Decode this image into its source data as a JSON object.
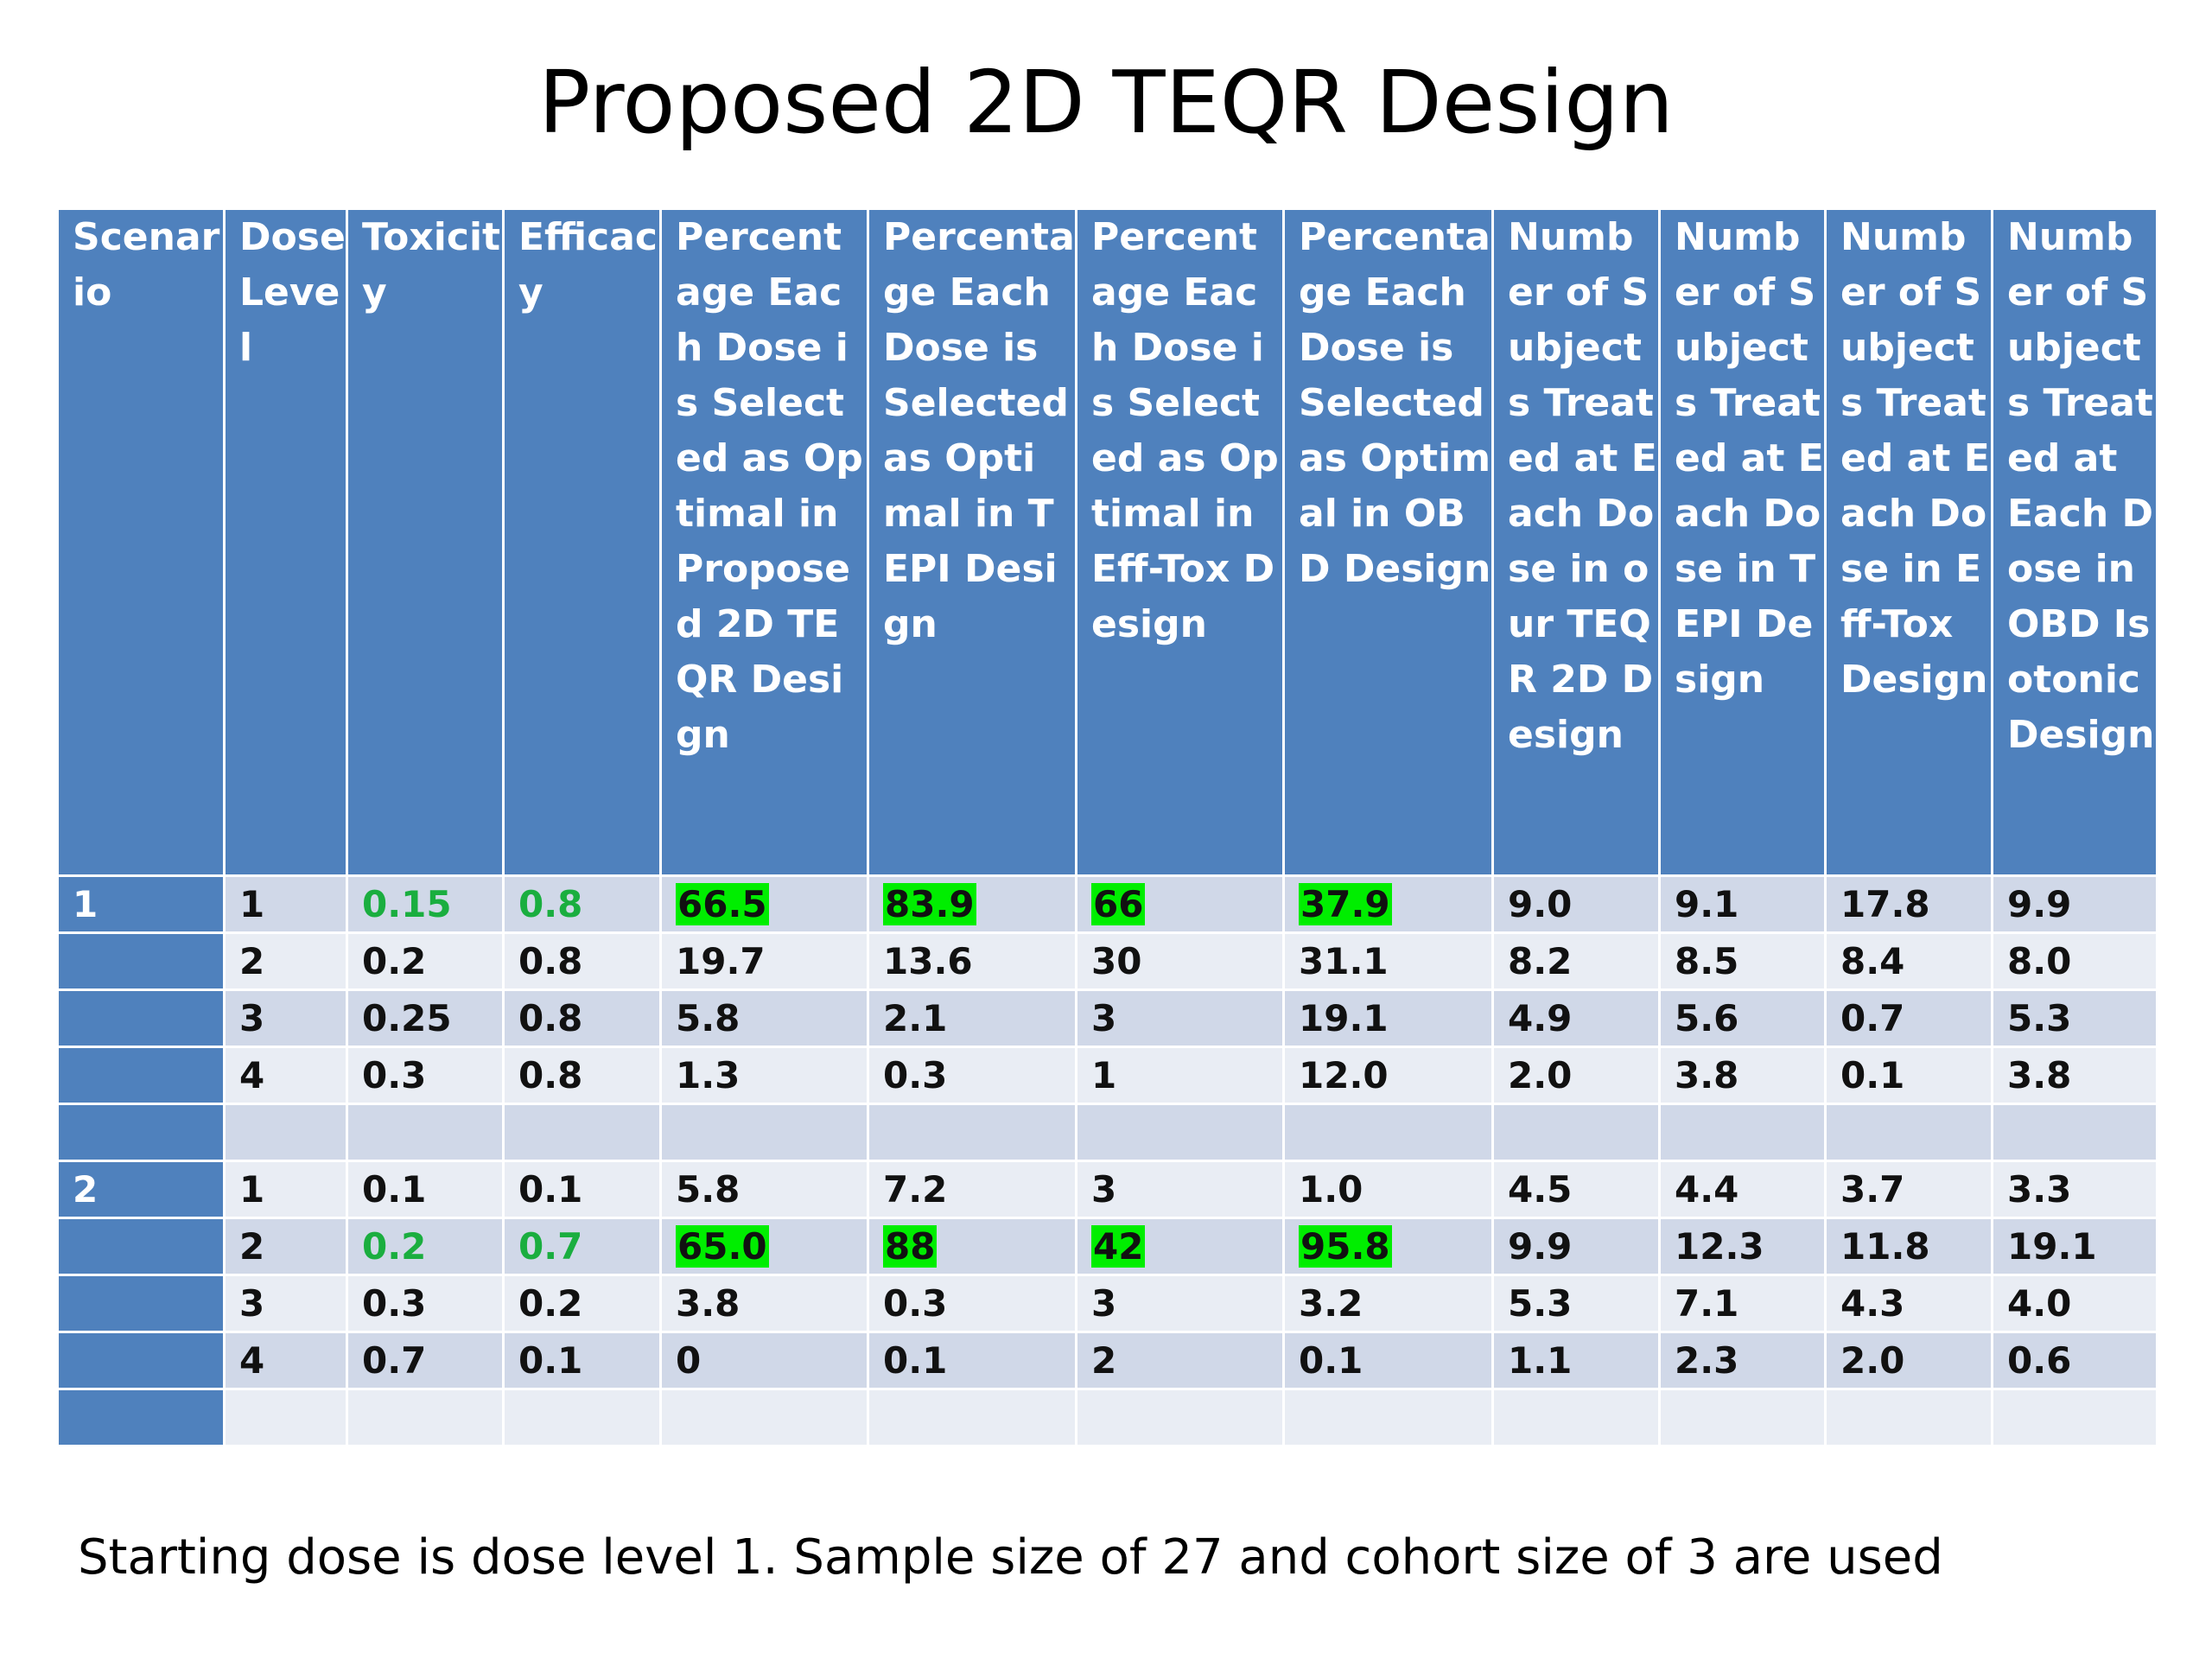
{
  "title": "Proposed 2D TEQR Design",
  "table": {
    "header": [
      "Scenario",
      "Dose Level",
      "Toxicity",
      "Efficacy",
      "Percentage Each Dose is Selected as Optimal in Proposed 2D TEQR Design",
      "Percentage Each Dose is Selected as Optimal in TEPI Design",
      "Percentage Each Dose is Selected as Optimal in Eff-Tox Design",
      "Percentage Each Dose is Selected as Optimal in OBD Design",
      "Number of Subjects Treated at Each Dose in our TEQR 2D Design",
      "Number of Subjects Treated at Each Dose in TEPI Design",
      "Number of Subjects Treated at Each Dose in Eff-Tox Design",
      "Number of Subjects Treated at Each Dose in OBD Isotonic Design"
    ],
    "rows": [
      [
        "1",
        "1",
        "0.15",
        "0.8",
        "66.5",
        "83.9",
        "66",
        "37.9",
        "9.0",
        "9.1",
        "17.8",
        "9.9"
      ],
      [
        null,
        "2",
        "0.2",
        "0.8",
        "19.7",
        "13.6",
        "30",
        "31.1",
        "8.2",
        "8.5",
        "8.4",
        "8.0"
      ],
      [
        null,
        "3",
        "0.25",
        "0.8",
        "5.8",
        "2.1",
        "3",
        "19.1",
        "4.9",
        "5.6",
        "0.7",
        "5.3"
      ],
      [
        null,
        "4",
        "0.3",
        "0.8",
        "1.3",
        "0.3",
        "1",
        "12.0",
        "2.0",
        "3.8",
        "0.1",
        "3.8"
      ],
      [
        null,
        null,
        null,
        null,
        null,
        null,
        null,
        null,
        null,
        null,
        null,
        null
      ],
      [
        "2",
        "1",
        "0.1",
        "0.1",
        "5.8",
        "7.2",
        "3",
        "1.0",
        "4.5",
        "4.4",
        "3.7",
        "3.3"
      ],
      [
        null,
        "2",
        "0.2",
        "0.7",
        "65.0",
        "88",
        "42",
        "95.8",
        "9.9",
        "12.3",
        "11.8",
        "19.1"
      ],
      [
        null,
        "3",
        "0.3",
        "0.2",
        "3.8",
        "0.3",
        "3",
        "3.2",
        "5.3",
        "7.1",
        "4.3",
        "4.0"
      ],
      [
        null,
        "4",
        "0.7",
        "0.1",
        "0",
        "0.1",
        "2",
        "0.1",
        "1.1",
        "2.3",
        "2.0",
        "0.6"
      ],
      [
        null,
        null,
        null,
        null,
        null,
        null,
        null,
        null,
        null,
        null,
        null,
        null
      ]
    ]
  },
  "footnote": "Starting dose is dose level 1. Sample size of 27 and cohort size of 3 are used"
}
